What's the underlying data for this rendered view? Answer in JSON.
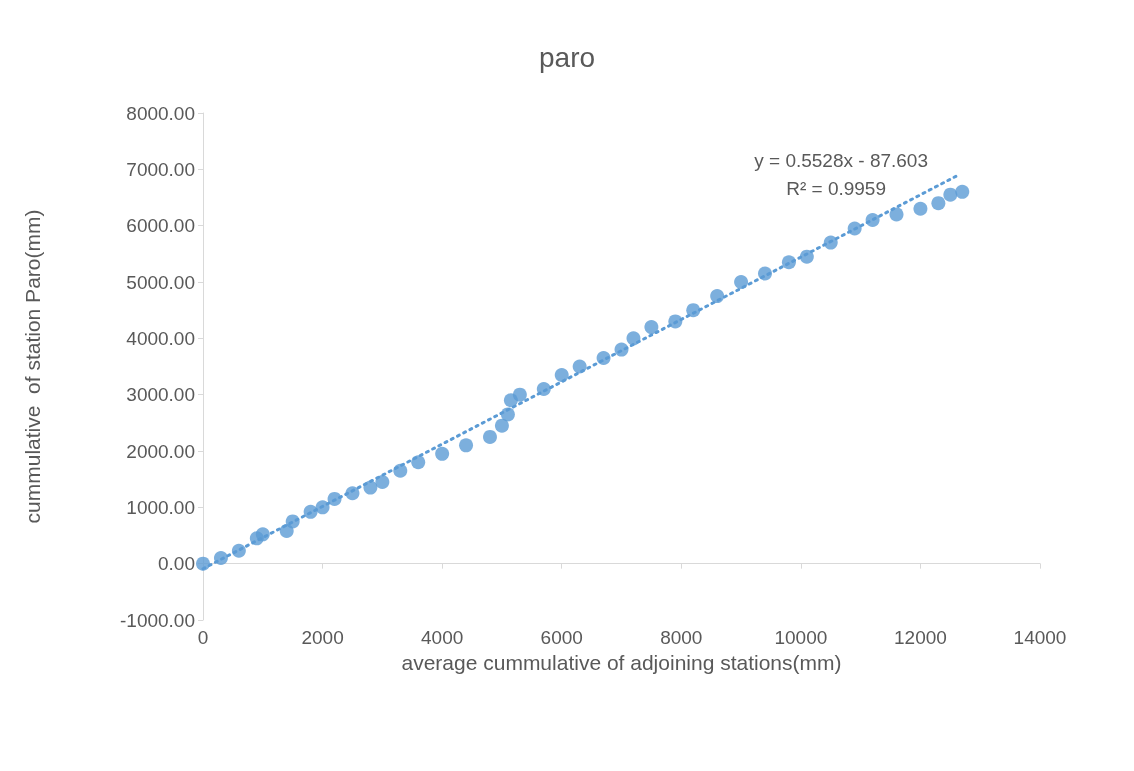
{
  "chart_data": {
    "type": "scatter",
    "title": "paro",
    "xlabel": "average cummulative of adjoining stations(mm)",
    "ylabel": "cummulative  of station Paro(mm)",
    "x": [
      0,
      300,
      600,
      900,
      1000,
      1400,
      1500,
      1800,
      2000,
      2200,
      2500,
      2800,
      3000,
      3300,
      3600,
      4000,
      4400,
      4800,
      5000,
      5100,
      5150,
      5300,
      5700,
      6000,
      6300,
      6700,
      7000,
      7200,
      7500,
      7900,
      8200,
      8600,
      9000,
      9400,
      9800,
      10100,
      10500,
      10900,
      11200,
      11600,
      12000,
      12300,
      12500,
      12700
    ],
    "series": [
      {
        "color": "#5b9bd5",
        "marker": "circle",
        "values": [
          0,
          100,
          230,
          450,
          520,
          580,
          750,
          920,
          1000,
          1150,
          1250,
          1350,
          1450,
          1650,
          1800,
          1950,
          2100,
          2250,
          2450,
          2650,
          2900,
          3000,
          3100,
          3350,
          3500,
          3650,
          3800,
          4000,
          4200,
          4300,
          4500,
          4750,
          5000,
          5150,
          5350,
          5450,
          5700,
          5950,
          6100,
          6200,
          6300,
          6400,
          6550,
          6600
        ]
      },
      {
        "type": "line",
        "color": "#5b9bd5",
        "line_style": "dotted",
        "marker": "none",
        "x": [
          0,
          12600
        ],
        "values": [
          -90,
          6880
        ]
      }
    ],
    "xlim": [
      0,
      14000
    ],
    "xticks": [
      0,
      2000,
      4000,
      6000,
      8000,
      10000,
      12000,
      14000
    ],
    "ylim": [
      -1000,
      8000
    ],
    "yticks": [
      {
        "value": -1000,
        "label": "-1000.00"
      },
      {
        "value": 0,
        "label": "0.00"
      },
      {
        "value": 1000,
        "label": "1000.00"
      },
      {
        "value": 2000,
        "label": "2000.00"
      },
      {
        "value": 3000,
        "label": "3000.00"
      },
      {
        "value": 4000,
        "label": "4000.00"
      },
      {
        "value": 5000,
        "label": "5000.00"
      },
      {
        "value": 6000,
        "label": "6000.00"
      },
      {
        "value": 7000,
        "label": "7000.00"
      },
      {
        "value": 8000,
        "label": "8000.00"
      }
    ],
    "annotations": [
      "y = 0.5528x - 87.603",
      "R² = 0.9959"
    ]
  }
}
